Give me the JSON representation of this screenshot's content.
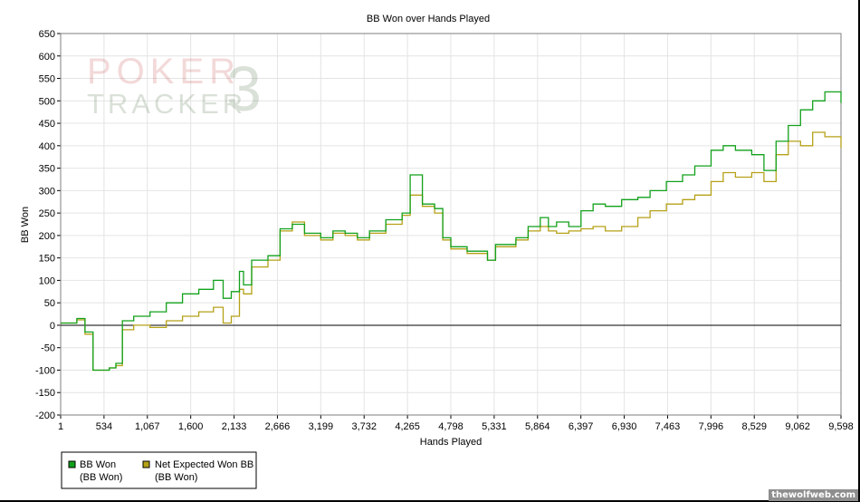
{
  "chart_data": {
    "type": "line",
    "title": "BB Won over Hands Played",
    "xlabel": "Hands Played",
    "ylabel": "BB Won",
    "xlim": [
      1,
      9598
    ],
    "ylim": [
      -200,
      650
    ],
    "x_ticks": [
      "1",
      "534",
      "1,067",
      "1,600",
      "2,133",
      "2,666",
      "3,199",
      "3,732",
      "4,265",
      "4,798",
      "5,331",
      "5,864",
      "6,397",
      "6,930",
      "7,463",
      "7,996",
      "8,529",
      "9,062",
      "9,598"
    ],
    "y_ticks": [
      650,
      600,
      550,
      500,
      450,
      400,
      350,
      300,
      250,
      200,
      150,
      100,
      50,
      0,
      -50,
      -100,
      -150,
      -200
    ],
    "grid": true,
    "legend_position": "bottom-left",
    "series": [
      {
        "name": "BB Won",
        "sub": "(BB Won)",
        "color": "#12a11b",
        "x": [
          1,
          200,
          300,
          400,
          600,
          680,
          760,
          900,
          1100,
          1300,
          1500,
          1700,
          1880,
          2000,
          2100,
          2200,
          2250,
          2350,
          2550,
          2700,
          2850,
          3000,
          3200,
          3350,
          3500,
          3650,
          3800,
          4000,
          4200,
          4300,
          4450,
          4600,
          4700,
          4800,
          5000,
          5250,
          5350,
          5600,
          5750,
          5900,
          6000,
          6100,
          6250,
          6400,
          6550,
          6700,
          6900,
          7100,
          7250,
          7450,
          7650,
          7800,
          8000,
          8150,
          8300,
          8500,
          8650,
          8800,
          8950,
          9100,
          9250,
          9400,
          9598
        ],
        "values": [
          5,
          15,
          -15,
          -100,
          -95,
          -85,
          10,
          20,
          30,
          50,
          70,
          80,
          100,
          60,
          75,
          120,
          90,
          145,
          155,
          215,
          225,
          205,
          195,
          210,
          205,
          195,
          210,
          235,
          250,
          335,
          270,
          260,
          195,
          175,
          165,
          145,
          180,
          195,
          220,
          240,
          220,
          230,
          220,
          255,
          270,
          265,
          280,
          285,
          300,
          320,
          335,
          355,
          390,
          400,
          390,
          380,
          345,
          410,
          445,
          480,
          500,
          520,
          495
        ]
      },
      {
        "name": "Net Expected Won BB",
        "sub": "(BB Won)",
        "color": "#b5a117",
        "x": [
          1,
          200,
          300,
          400,
          600,
          680,
          760,
          900,
          1100,
          1300,
          1500,
          1700,
          1880,
          2000,
          2100,
          2200,
          2250,
          2350,
          2550,
          2700,
          2850,
          3000,
          3200,
          3350,
          3500,
          3650,
          3800,
          4000,
          4200,
          4300,
          4450,
          4600,
          4700,
          4800,
          5000,
          5250,
          5350,
          5600,
          5750,
          5900,
          6000,
          6100,
          6250,
          6400,
          6550,
          6700,
          6900,
          7100,
          7250,
          7450,
          7650,
          7800,
          8000,
          8150,
          8300,
          8500,
          8650,
          8800,
          8950,
          9100,
          9250,
          9400,
          9598
        ],
        "values": [
          5,
          12,
          -20,
          -100,
          -95,
          -90,
          -10,
          0,
          -5,
          10,
          20,
          30,
          40,
          5,
          20,
          80,
          70,
          130,
          145,
          210,
          230,
          200,
          190,
          205,
          200,
          190,
          205,
          225,
          245,
          290,
          265,
          250,
          190,
          170,
          160,
          145,
          175,
          190,
          210,
          220,
          210,
          205,
          210,
          215,
          220,
          210,
          220,
          240,
          255,
          270,
          280,
          290,
          320,
          340,
          330,
          340,
          320,
          380,
          410,
          400,
          430,
          420,
          395
        ]
      }
    ]
  },
  "watermark": {
    "line1": "POKER",
    "line2": "TRACKER",
    "mark": "3"
  },
  "credit": "thewolfweb.com"
}
